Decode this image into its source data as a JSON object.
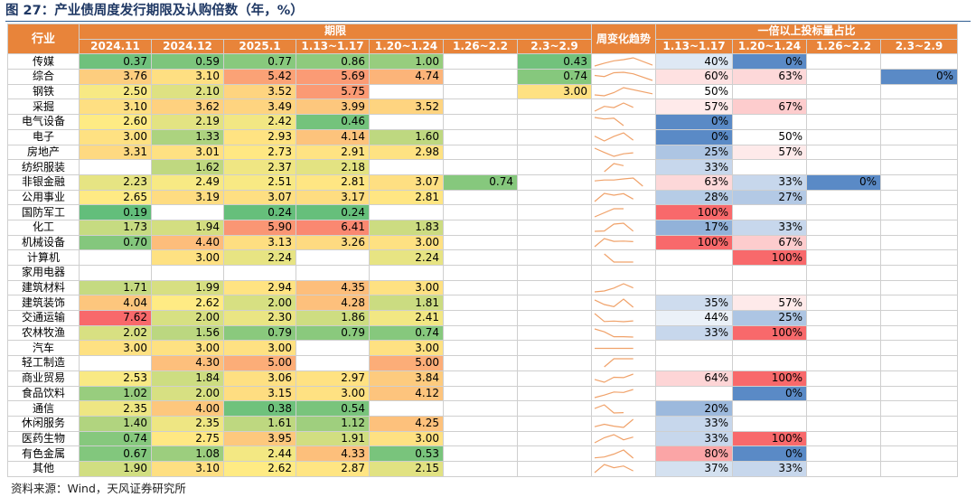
{
  "title": "图 27：产业债周度发行期限及认购倍数（年，%）",
  "source": "资料来源：Wind，天风证券研究所",
  "colors": {
    "header_bg": "#e8843a",
    "header_text": "#ffffff",
    "title": "#1f3864",
    "trend_line": "#f0a26a",
    "heat_low": "#63be7b",
    "heat_mid": "#ffeb84",
    "heat_high": "#f8696b",
    "ratio_blue": "#5a8ac6",
    "ratio_white": "#ffffff",
    "ratio_red": "#f8696b"
  },
  "header": {
    "industry": "行业",
    "group_term": "期限",
    "group_ratio": "一倍以上投标量占比",
    "trend": "周变化趋势",
    "term_cols": [
      "2024.11",
      "2024.12",
      "2025.1",
      "1.13~1.17",
      "1.20~1.24",
      "1.26~2.2",
      "2.3~2.9"
    ],
    "ratio_cols": [
      "1.13~1.17",
      "1.20~1.24",
      "1.26~2.2",
      "2.3~2.9"
    ]
  },
  "chart_data": {
    "type": "table",
    "rows": [
      {
        "industry": "传媒",
        "term": [
          "0.37",
          "0.59",
          "0.77",
          "0.86",
          "1.00",
          "",
          "0.43"
        ],
        "ratio": [
          "40%",
          "0%",
          "",
          ""
        ]
      },
      {
        "industry": "综合",
        "term": [
          "3.76",
          "3.10",
          "5.42",
          "5.69",
          "4.74",
          "",
          "0.74"
        ],
        "ratio": [
          "60%",
          "63%",
          "",
          "0%"
        ]
      },
      {
        "industry": "钢铁",
        "term": [
          "2.50",
          "2.10",
          "3.52",
          "5.75",
          "",
          "",
          "3.00"
        ],
        "ratio": [
          "50%",
          "",
          "",
          ""
        ]
      },
      {
        "industry": "采掘",
        "term": [
          "3.10",
          "3.62",
          "3.49",
          "3.99",
          "3.52",
          "",
          ""
        ],
        "ratio": [
          "57%",
          "67%",
          "",
          ""
        ]
      },
      {
        "industry": "电气设备",
        "term": [
          "2.60",
          "2.19",
          "2.42",
          "0.46",
          "",
          "",
          ""
        ],
        "ratio": [
          "0%",
          "",
          "",
          ""
        ]
      },
      {
        "industry": "电子",
        "term": [
          "3.00",
          "1.33",
          "2.93",
          "4.14",
          "1.60",
          "",
          ""
        ],
        "ratio": [
          "0%",
          "50%",
          "",
          ""
        ]
      },
      {
        "industry": "房地产",
        "term": [
          "3.31",
          "3.01",
          "2.73",
          "2.91",
          "2.98",
          "",
          ""
        ],
        "ratio": [
          "25%",
          "57%",
          "",
          ""
        ]
      },
      {
        "industry": "纺织服装",
        "term": [
          "",
          "1.62",
          "2.37",
          "2.18",
          "",
          "",
          ""
        ],
        "ratio": [
          "33%",
          "",
          "",
          ""
        ]
      },
      {
        "industry": "非银金融",
        "term": [
          "2.23",
          "2.49",
          "2.51",
          "2.81",
          "3.07",
          "0.74",
          ""
        ],
        "ratio": [
          "63%",
          "33%",
          "0%",
          ""
        ]
      },
      {
        "industry": "公用事业",
        "term": [
          "2.65",
          "3.19",
          "3.07",
          "3.17",
          "2.81",
          "",
          ""
        ],
        "ratio": [
          "28%",
          "27%",
          "",
          ""
        ]
      },
      {
        "industry": "国防军工",
        "term": [
          "0.19",
          "",
          "0.24",
          "0.24",
          "",
          "",
          ""
        ],
        "ratio": [
          "100%",
          "",
          "",
          ""
        ]
      },
      {
        "industry": "化工",
        "term": [
          "1.73",
          "1.94",
          "5.90",
          "6.41",
          "1.83",
          "",
          ""
        ],
        "ratio": [
          "17%",
          "33%",
          "",
          ""
        ]
      },
      {
        "industry": "机械设备",
        "term": [
          "0.70",
          "4.40",
          "3.13",
          "3.26",
          "3.00",
          "",
          ""
        ],
        "ratio": [
          "100%",
          "67%",
          "",
          ""
        ]
      },
      {
        "industry": "计算机",
        "term": [
          "",
          "3.00",
          "2.24",
          "",
          "2.24",
          "",
          ""
        ],
        "ratio": [
          "",
          "100%",
          "",
          ""
        ]
      },
      {
        "industry": "家用电器",
        "term": [
          "",
          "",
          "",
          "",
          "",
          "",
          ""
        ],
        "ratio": [
          "",
          "",
          "",
          ""
        ]
      },
      {
        "industry": "建筑材料",
        "term": [
          "1.71",
          "1.99",
          "2.94",
          "4.35",
          "3.00",
          "",
          ""
        ],
        "ratio": [
          "",
          "",
          "",
          ""
        ]
      },
      {
        "industry": "建筑装饰",
        "term": [
          "4.04",
          "2.62",
          "2.00",
          "4.28",
          "1.81",
          "",
          ""
        ],
        "ratio": [
          "35%",
          "57%",
          "",
          ""
        ]
      },
      {
        "industry": "交通运输",
        "term": [
          "7.62",
          "2.00",
          "2.30",
          "1.86",
          "2.41",
          "",
          ""
        ],
        "ratio": [
          "44%",
          "25%",
          "",
          ""
        ]
      },
      {
        "industry": "农林牧渔",
        "term": [
          "2.02",
          "1.56",
          "0.79",
          "0.79",
          "0.74",
          "",
          ""
        ],
        "ratio": [
          "33%",
          "100%",
          "",
          ""
        ]
      },
      {
        "industry": "汽车",
        "term": [
          "3.00",
          "3.00",
          "3.00",
          "",
          "3.00",
          "",
          ""
        ],
        "ratio": [
          "",
          "",
          "",
          ""
        ]
      },
      {
        "industry": "轻工制造",
        "term": [
          "",
          "4.30",
          "5.00",
          "",
          "5.00",
          "",
          ""
        ],
        "ratio": [
          "",
          "",
          "",
          ""
        ]
      },
      {
        "industry": "商业贸易",
        "term": [
          "2.53",
          "1.84",
          "3.06",
          "2.97",
          "3.84",
          "",
          ""
        ],
        "ratio": [
          "64%",
          "100%",
          "",
          ""
        ]
      },
      {
        "industry": "食品饮料",
        "term": [
          "1.02",
          "2.00",
          "3.15",
          "3.00",
          "4.12",
          "",
          ""
        ],
        "ratio": [
          "",
          "0%",
          "",
          ""
        ]
      },
      {
        "industry": "通信",
        "term": [
          "2.35",
          "4.00",
          "0.38",
          "0.54",
          "",
          "",
          ""
        ],
        "ratio": [
          "20%",
          "",
          "",
          ""
        ]
      },
      {
        "industry": "休闲服务",
        "term": [
          "1.40",
          "2.35",
          "1.61",
          "1.12",
          "4.25",
          "",
          ""
        ],
        "ratio": [
          "33%",
          "",
          "",
          ""
        ]
      },
      {
        "industry": "医药生物",
        "term": [
          "0.74",
          "2.75",
          "3.95",
          "1.91",
          "3.00",
          "",
          ""
        ],
        "ratio": [
          "33%",
          "100%",
          "",
          ""
        ]
      },
      {
        "industry": "有色金属",
        "term": [
          "0.67",
          "1.08",
          "2.44",
          "4.33",
          "0.53",
          "",
          ""
        ],
        "ratio": [
          "80%",
          "0%",
          "",
          ""
        ]
      },
      {
        "industry": "其他",
        "term": [
          "1.90",
          "3.10",
          "2.62",
          "2.87",
          "2.15",
          "",
          ""
        ],
        "ratio": [
          "37%",
          "33%",
          "",
          ""
        ]
      }
    ]
  }
}
